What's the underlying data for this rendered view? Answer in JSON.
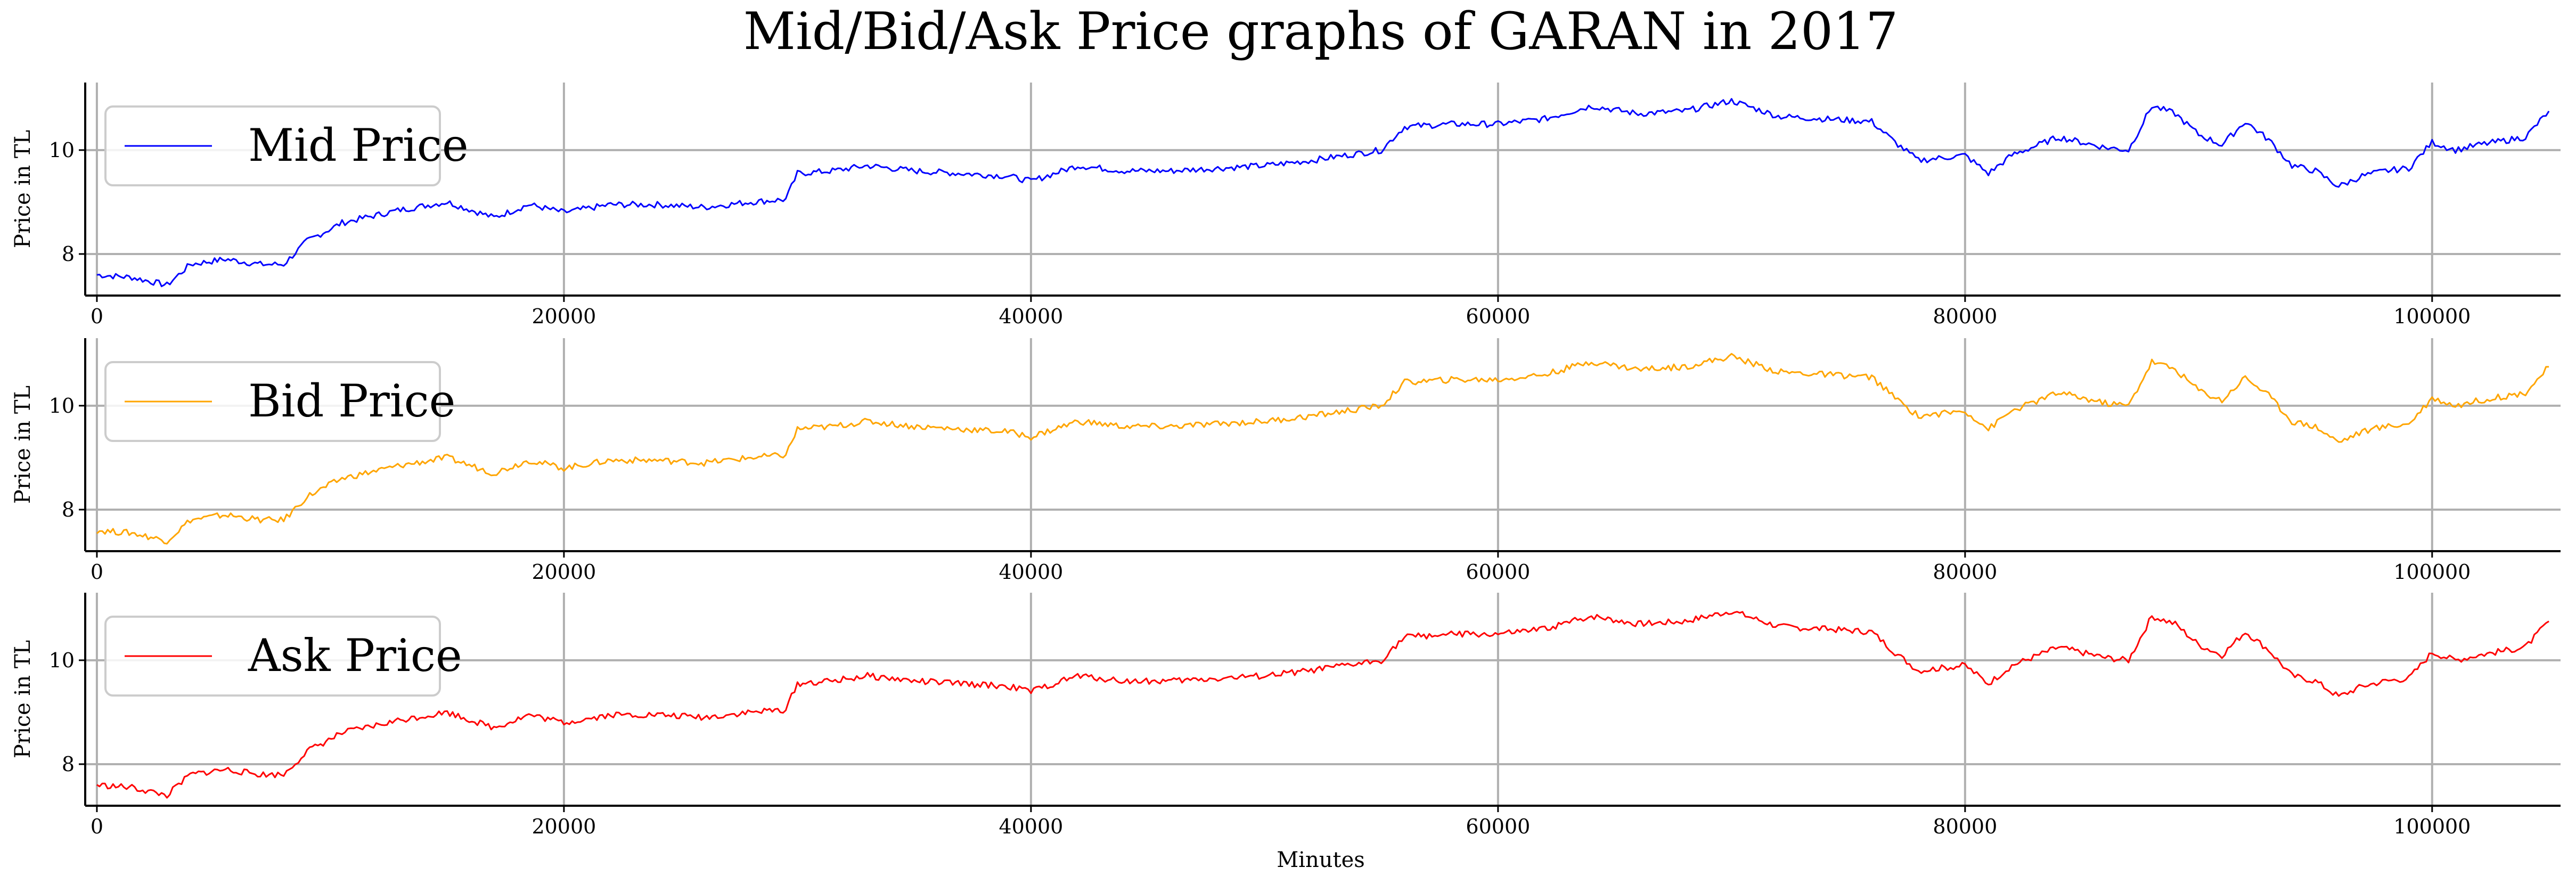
{
  "chart_data": {
    "type": "line",
    "title": "Mid/Bid/Ask Price graphs of GARAN in 2017",
    "xlabel": "Minutes",
    "xlim": [
      -500,
      105500
    ],
    "x_ticks": [
      0,
      20000,
      40000,
      60000,
      80000,
      100000
    ],
    "grid": true,
    "legend_position": "top-left",
    "panels": [
      {
        "series_name": "Mid Price",
        "color": "#0000ff",
        "ylabel": "Price in TL",
        "ylim": [
          7.2,
          11.3
        ],
        "y_ticks": [
          8,
          10
        ],
        "points": [
          [
            0,
            7.6
          ],
          [
            1500,
            7.55
          ],
          [
            3000,
            7.4
          ],
          [
            4000,
            7.8
          ],
          [
            5500,
            7.9
          ],
          [
            7000,
            7.8
          ],
          [
            8000,
            7.8
          ],
          [
            9000,
            8.25
          ],
          [
            10500,
            8.6
          ],
          [
            11500,
            8.7
          ],
          [
            13000,
            8.85
          ],
          [
            15000,
            9.0
          ],
          [
            17000,
            8.7
          ],
          [
            18500,
            8.95
          ],
          [
            20000,
            8.8
          ],
          [
            22000,
            8.95
          ],
          [
            24000,
            8.95
          ],
          [
            26000,
            8.9
          ],
          [
            28000,
            9.0
          ],
          [
            29500,
            9.05
          ],
          [
            30000,
            9.55
          ],
          [
            31500,
            9.6
          ],
          [
            33000,
            9.7
          ],
          [
            35000,
            9.6
          ],
          [
            37000,
            9.55
          ],
          [
            39000,
            9.5
          ],
          [
            40000,
            9.4
          ],
          [
            42000,
            9.7
          ],
          [
            44000,
            9.6
          ],
          [
            46000,
            9.6
          ],
          [
            48000,
            9.65
          ],
          [
            50000,
            9.7
          ],
          [
            52000,
            9.8
          ],
          [
            55000,
            10.0
          ],
          [
            56000,
            10.45
          ],
          [
            58000,
            10.5
          ],
          [
            60000,
            10.5
          ],
          [
            62000,
            10.6
          ],
          [
            64000,
            10.85
          ],
          [
            66000,
            10.7
          ],
          [
            68000,
            10.75
          ],
          [
            70000,
            10.95
          ],
          [
            72000,
            10.65
          ],
          [
            74000,
            10.6
          ],
          [
            76000,
            10.55
          ],
          [
            77000,
            10.15
          ],
          [
            78000,
            9.8
          ],
          [
            79000,
            9.85
          ],
          [
            80000,
            9.9
          ],
          [
            81000,
            9.55
          ],
          [
            82000,
            9.9
          ],
          [
            84000,
            10.25
          ],
          [
            86000,
            10.05
          ],
          [
            87000,
            10.0
          ],
          [
            88000,
            10.85
          ],
          [
            89000,
            10.7
          ],
          [
            90000,
            10.3
          ],
          [
            91000,
            10.1
          ],
          [
            92000,
            10.55
          ],
          [
            93000,
            10.2
          ],
          [
            94000,
            9.7
          ],
          [
            95000,
            9.6
          ],
          [
            96000,
            9.3
          ],
          [
            97000,
            9.5
          ],
          [
            98000,
            9.6
          ],
          [
            99000,
            9.65
          ],
          [
            100000,
            10.15
          ],
          [
            101000,
            10.0
          ],
          [
            102000,
            10.1
          ],
          [
            104000,
            10.25
          ],
          [
            105000,
            10.75
          ]
        ]
      },
      {
        "series_name": "Bid Price",
        "color": "#ffa500",
        "ylabel": "Price in TL",
        "ylim": [
          7.2,
          11.3
        ],
        "y_ticks": [
          8,
          10
        ],
        "points": [
          [
            0,
            7.6
          ],
          [
            1500,
            7.55
          ],
          [
            3000,
            7.4
          ],
          [
            4000,
            7.8
          ],
          [
            5500,
            7.9
          ],
          [
            7000,
            7.8
          ],
          [
            8000,
            7.8
          ],
          [
            9000,
            8.25
          ],
          [
            10500,
            8.6
          ],
          [
            11500,
            8.7
          ],
          [
            13000,
            8.85
          ],
          [
            15000,
            9.0
          ],
          [
            17000,
            8.7
          ],
          [
            18500,
            8.95
          ],
          [
            20000,
            8.8
          ],
          [
            22000,
            8.95
          ],
          [
            24000,
            8.95
          ],
          [
            26000,
            8.9
          ],
          [
            28000,
            9.0
          ],
          [
            29500,
            9.05
          ],
          [
            30000,
            9.55
          ],
          [
            31500,
            9.6
          ],
          [
            33000,
            9.7
          ],
          [
            35000,
            9.6
          ],
          [
            37000,
            9.55
          ],
          [
            39000,
            9.5
          ],
          [
            40000,
            9.4
          ],
          [
            42000,
            9.7
          ],
          [
            44000,
            9.6
          ],
          [
            46000,
            9.6
          ],
          [
            48000,
            9.65
          ],
          [
            50000,
            9.7
          ],
          [
            52000,
            9.8
          ],
          [
            55000,
            10.0
          ],
          [
            56000,
            10.45
          ],
          [
            58000,
            10.5
          ],
          [
            60000,
            10.5
          ],
          [
            62000,
            10.6
          ],
          [
            64000,
            10.85
          ],
          [
            66000,
            10.7
          ],
          [
            68000,
            10.75
          ],
          [
            70000,
            10.95
          ],
          [
            72000,
            10.65
          ],
          [
            74000,
            10.6
          ],
          [
            76000,
            10.55
          ],
          [
            77000,
            10.15
          ],
          [
            78000,
            9.8
          ],
          [
            79000,
            9.85
          ],
          [
            80000,
            9.9
          ],
          [
            81000,
            9.55
          ],
          [
            82000,
            9.9
          ],
          [
            84000,
            10.25
          ],
          [
            86000,
            10.05
          ],
          [
            87000,
            10.0
          ],
          [
            88000,
            10.85
          ],
          [
            89000,
            10.7
          ],
          [
            90000,
            10.3
          ],
          [
            91000,
            10.1
          ],
          [
            92000,
            10.55
          ],
          [
            93000,
            10.2
          ],
          [
            94000,
            9.7
          ],
          [
            95000,
            9.6
          ],
          [
            96000,
            9.3
          ],
          [
            97000,
            9.5
          ],
          [
            98000,
            9.6
          ],
          [
            99000,
            9.65
          ],
          [
            100000,
            10.15
          ],
          [
            101000,
            10.0
          ],
          [
            102000,
            10.1
          ],
          [
            104000,
            10.25
          ],
          [
            105000,
            10.75
          ]
        ]
      },
      {
        "series_name": "Ask Price",
        "color": "#ff0000",
        "ylabel": "Price in TL",
        "ylim": [
          7.2,
          11.3
        ],
        "y_ticks": [
          8,
          10
        ],
        "points": [
          [
            0,
            7.6
          ],
          [
            1500,
            7.55
          ],
          [
            3000,
            7.4
          ],
          [
            4000,
            7.8
          ],
          [
            5500,
            7.9
          ],
          [
            7000,
            7.8
          ],
          [
            8000,
            7.8
          ],
          [
            9000,
            8.25
          ],
          [
            10500,
            8.6
          ],
          [
            11500,
            8.7
          ],
          [
            13000,
            8.85
          ],
          [
            15000,
            9.0
          ],
          [
            17000,
            8.7
          ],
          [
            18500,
            8.95
          ],
          [
            20000,
            8.8
          ],
          [
            22000,
            8.95
          ],
          [
            24000,
            8.95
          ],
          [
            26000,
            8.9
          ],
          [
            28000,
            9.0
          ],
          [
            29500,
            9.05
          ],
          [
            30000,
            9.55
          ],
          [
            31500,
            9.6
          ],
          [
            33000,
            9.7
          ],
          [
            35000,
            9.6
          ],
          [
            37000,
            9.55
          ],
          [
            39000,
            9.5
          ],
          [
            40000,
            9.4
          ],
          [
            42000,
            9.7
          ],
          [
            44000,
            9.6
          ],
          [
            46000,
            9.6
          ],
          [
            48000,
            9.65
          ],
          [
            50000,
            9.7
          ],
          [
            52000,
            9.8
          ],
          [
            55000,
            10.0
          ],
          [
            56000,
            10.45
          ],
          [
            58000,
            10.5
          ],
          [
            60000,
            10.5
          ],
          [
            62000,
            10.6
          ],
          [
            64000,
            10.85
          ],
          [
            66000,
            10.7
          ],
          [
            68000,
            10.75
          ],
          [
            70000,
            10.95
          ],
          [
            72000,
            10.65
          ],
          [
            74000,
            10.6
          ],
          [
            76000,
            10.55
          ],
          [
            77000,
            10.15
          ],
          [
            78000,
            9.8
          ],
          [
            79000,
            9.85
          ],
          [
            80000,
            9.9
          ],
          [
            81000,
            9.55
          ],
          [
            82000,
            9.9
          ],
          [
            84000,
            10.25
          ],
          [
            86000,
            10.05
          ],
          [
            87000,
            10.0
          ],
          [
            88000,
            10.85
          ],
          [
            89000,
            10.7
          ],
          [
            90000,
            10.3
          ],
          [
            91000,
            10.1
          ],
          [
            92000,
            10.55
          ],
          [
            93000,
            10.2
          ],
          [
            94000,
            9.7
          ],
          [
            95000,
            9.6
          ],
          [
            96000,
            9.3
          ],
          [
            97000,
            9.5
          ],
          [
            98000,
            9.6
          ],
          [
            99000,
            9.65
          ],
          [
            100000,
            10.15
          ],
          [
            101000,
            10.0
          ],
          [
            102000,
            10.1
          ],
          [
            104000,
            10.25
          ],
          [
            105000,
            10.75
          ]
        ]
      }
    ]
  }
}
